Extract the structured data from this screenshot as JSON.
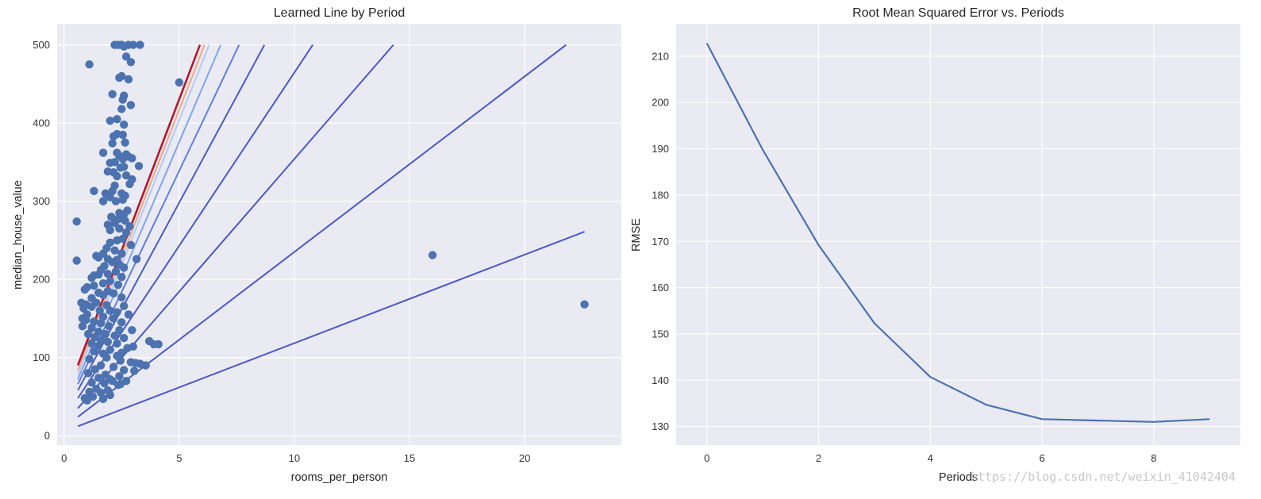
{
  "watermark": "https://blog.csdn.net/weixin_41042404",
  "chart_data": [
    {
      "type": "scatter",
      "title": "Learned Line by Period",
      "xlabel": "rooms_per_person",
      "ylabel": "median_house_value",
      "xlim": [
        -0.3,
        24.2
      ],
      "ylim": [
        -12,
        527
      ],
      "xticks": [
        0,
        5,
        10,
        15,
        20
      ],
      "yticks": [
        0,
        100,
        200,
        300,
        400,
        500
      ],
      "grid": true,
      "point_color": "#4c72b0",
      "points": [
        [
          2.2,
          500
        ],
        [
          2.35,
          500
        ],
        [
          2.5,
          500
        ],
        [
          2.8,
          500
        ],
        [
          3.0,
          500
        ],
        [
          3.3,
          500
        ],
        [
          2.6,
          498
        ],
        [
          2.7,
          485
        ],
        [
          2.9,
          478
        ],
        [
          1.1,
          475
        ],
        [
          2.5,
          460
        ],
        [
          2.4,
          458
        ],
        [
          2.8,
          456
        ],
        [
          5.0,
          452
        ],
        [
          2.1,
          437
        ],
        [
          2.6,
          435
        ],
        [
          2.55,
          430
        ],
        [
          2.9,
          423
        ],
        [
          2.5,
          418
        ],
        [
          2.3,
          405
        ],
        [
          2.0,
          403
        ],
        [
          2.6,
          398
        ],
        [
          2.3,
          386
        ],
        [
          2.55,
          385
        ],
        [
          2.15,
          383
        ],
        [
          2.65,
          375
        ],
        [
          2.1,
          374
        ],
        [
          1.7,
          362
        ],
        [
          2.3,
          362
        ],
        [
          2.7,
          360
        ],
        [
          2.4,
          358
        ],
        [
          2.8,
          357
        ],
        [
          2.95,
          355
        ],
        [
          2.55,
          354
        ],
        [
          2.2,
          350
        ],
        [
          2.0,
          349
        ],
        [
          3.25,
          345
        ],
        [
          2.6,
          344
        ],
        [
          2.45,
          343
        ],
        [
          1.9,
          338
        ],
        [
          2.15,
          337
        ],
        [
          2.7,
          333
        ],
        [
          2.3,
          332
        ],
        [
          2.95,
          328
        ],
        [
          2.85,
          322
        ],
        [
          2.2,
          320
        ],
        [
          2.1,
          313
        ],
        [
          1.3,
          313
        ],
        [
          2.5,
          310
        ],
        [
          1.8,
          310
        ],
        [
          2.65,
          307
        ],
        [
          2.0,
          305
        ],
        [
          2.55,
          302
        ],
        [
          1.7,
          300
        ],
        [
          2.25,
          300
        ],
        [
          2.75,
          288
        ],
        [
          2.4,
          285
        ],
        [
          2.6,
          283
        ],
        [
          2.05,
          280
        ],
        [
          2.35,
          277
        ],
        [
          2.65,
          275
        ],
        [
          2.2,
          272
        ],
        [
          1.9,
          270
        ],
        [
          2.85,
          268
        ],
        [
          2.4,
          265
        ],
        [
          2.0,
          263
        ],
        [
          2.7,
          260
        ],
        [
          2.55,
          252
        ],
        [
          2.3,
          250
        ],
        [
          2.0,
          247
        ],
        [
          2.9,
          244
        ],
        [
          1.85,
          240
        ],
        [
          2.2,
          237
        ],
        [
          2.5,
          233
        ],
        [
          1.7,
          233
        ],
        [
          1.4,
          230
        ],
        [
          1.5,
          228
        ],
        [
          1.9,
          226
        ],
        [
          2.3,
          225
        ],
        [
          3.15,
          226
        ],
        [
          2.1,
          222
        ],
        [
          2.4,
          219
        ],
        [
          1.75,
          217
        ],
        [
          2.6,
          215
        ],
        [
          1.6,
          212
        ],
        [
          2.25,
          210
        ],
        [
          1.9,
          207
        ],
        [
          1.5,
          206
        ],
        [
          1.3,
          205
        ],
        [
          2.5,
          203
        ],
        [
          1.2,
          202
        ],
        [
          2.0,
          198
        ],
        [
          1.7,
          195
        ],
        [
          2.35,
          193
        ],
        [
          1.3,
          192
        ],
        [
          1.0,
          190
        ],
        [
          0.9,
          187
        ],
        [
          1.9,
          185
        ],
        [
          1.5,
          183
        ],
        [
          2.15,
          182
        ],
        [
          1.7,
          180
        ],
        [
          2.5,
          177
        ],
        [
          1.2,
          176
        ],
        [
          0.75,
          170
        ],
        [
          1.4,
          170
        ],
        [
          0.95,
          168
        ],
        [
          1.85,
          167
        ],
        [
          2.6,
          166
        ],
        [
          1.2,
          165
        ],
        [
          0.85,
          163
        ],
        [
          1.55,
          160
        ],
        [
          2.0,
          160
        ],
        [
          2.3,
          158
        ],
        [
          1.0,
          155
        ],
        [
          2.8,
          155
        ],
        [
          1.7,
          152
        ],
        [
          0.8,
          150
        ],
        [
          2.15,
          150
        ],
        [
          0.95,
          148
        ],
        [
          1.3,
          146
        ],
        [
          2.5,
          145
        ],
        [
          1.6,
          144
        ],
        [
          1.95,
          140
        ],
        [
          0.8,
          140
        ],
        [
          1.2,
          138
        ],
        [
          2.4,
          135
        ],
        [
          2.95,
          135
        ],
        [
          1.5,
          133
        ],
        [
          1.8,
          130
        ],
        [
          1.05,
          130
        ],
        [
          2.2,
          128
        ],
        [
          1.35,
          126
        ],
        [
          2.6,
          125
        ],
        [
          1.6,
          122
        ],
        [
          1.9,
          120
        ],
        [
          3.7,
          121
        ],
        [
          2.3,
          118
        ],
        [
          3.9,
          117
        ],
        [
          4.1,
          117
        ],
        [
          1.2,
          118
        ],
        [
          1.5,
          115
        ],
        [
          3.0,
          114
        ],
        [
          2.75,
          112
        ],
        [
          2.0,
          110
        ],
        [
          1.3,
          108
        ],
        [
          2.5,
          106
        ],
        [
          1.7,
          105
        ],
        [
          2.3,
          102
        ],
        [
          1.85,
          100
        ],
        [
          1.1,
          98
        ],
        [
          2.45,
          96
        ],
        [
          2.9,
          94
        ],
        [
          3.1,
          93
        ],
        [
          3.3,
          92
        ],
        [
          3.55,
          90
        ],
        [
          1.6,
          90
        ],
        [
          2.15,
          88
        ],
        [
          1.35,
          85
        ],
        [
          2.6,
          84
        ],
        [
          3.05,
          83
        ],
        [
          1.05,
          80
        ],
        [
          1.8,
          78
        ],
        [
          2.4,
          76
        ],
        [
          1.5,
          74
        ],
        [
          2.0,
          72
        ],
        [
          2.7,
          70
        ],
        [
          1.2,
          68
        ],
        [
          1.75,
          67
        ],
        [
          2.35,
          65
        ],
        [
          1.4,
          60
        ],
        [
          1.9,
          58
        ],
        [
          1.1,
          56
        ],
        [
          1.6,
          55
        ],
        [
          2.0,
          52
        ],
        [
          1.25,
          50
        ],
        [
          0.9,
          48
        ],
        [
          1.7,
          47
        ],
        [
          1.0,
          45
        ],
        [
          2.1,
          70
        ],
        [
          2.45,
          66
        ],
        [
          0.55,
          274
        ],
        [
          0.55,
          224
        ],
        [
          16.0,
          231
        ],
        [
          22.6,
          168
        ]
      ],
      "series": [
        {
          "color": "#4a58c8",
          "x": [
            0.6,
            22.6
          ],
          "y": [
            12,
            261
          ]
        },
        {
          "color": "#4a58c8",
          "x": [
            0.6,
            21.8
          ],
          "y": [
            24,
            500
          ]
        },
        {
          "color": "#4a58c8",
          "x": [
            0.6,
            14.3
          ],
          "y": [
            35,
            500
          ]
        },
        {
          "color": "#4a58c8",
          "x": [
            0.6,
            10.8
          ],
          "y": [
            48,
            500
          ]
        },
        {
          "color": "#4a5bc8",
          "x": [
            0.6,
            8.7
          ],
          "y": [
            58,
            500
          ]
        },
        {
          "color": "#5f7fe0",
          "x": [
            0.6,
            7.6
          ],
          "y": [
            66,
            500
          ]
        },
        {
          "color": "#7ea4ef",
          "x": [
            0.6,
            6.8
          ],
          "y": [
            72,
            500
          ]
        },
        {
          "color": "#b0cbf6",
          "x": [
            0.6,
            6.3
          ],
          "y": [
            78,
            500
          ]
        },
        {
          "color": "#f4a582",
          "x": [
            0.6,
            6.1
          ],
          "y": [
            84,
            500
          ]
        },
        {
          "color": "#b2182b",
          "x": [
            0.6,
            5.9
          ],
          "y": [
            90,
            500
          ]
        }
      ]
    },
    {
      "type": "line",
      "title": "Root Mean Squared Error vs. Periods",
      "xlabel": "Periods",
      "ylabel": "RMSE",
      "xlim": [
        -0.55,
        9.55
      ],
      "ylim": [
        126,
        217
      ],
      "xticks": [
        0,
        2,
        4,
        6,
        8
      ],
      "yticks": [
        130,
        140,
        150,
        160,
        170,
        180,
        190,
        200,
        210
      ],
      "grid": true,
      "line_color": "#4c72b0",
      "x": [
        0,
        1,
        2,
        3,
        4,
        5,
        6,
        7,
        8,
        9
      ],
      "y": [
        212.8,
        189.8,
        169.2,
        152.3,
        140.7,
        134.7,
        131.6,
        131.3,
        131.0,
        131.6
      ]
    }
  ]
}
